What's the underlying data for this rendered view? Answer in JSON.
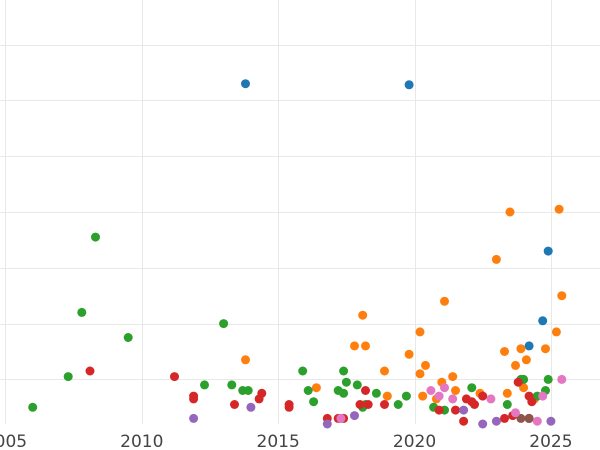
{
  "chart_data": {
    "type": "scatter",
    "title": "",
    "xlabel": "",
    "ylabel": "",
    "grid": true,
    "xlim": [
      2004.8,
      2026.8
    ],
    "ylim": [
      0,
      7.6
    ],
    "xticks": [
      2005,
      2010,
      2015,
      2020,
      2025
    ],
    "xtick_labels": [
      "2005",
      "2010",
      "2015",
      "2020",
      "2025"
    ],
    "yticks": [
      0.8,
      1.8,
      2.8,
      3.8,
      4.8,
      5.8,
      6.8
    ],
    "series": [
      {
        "color": "#1f77b4",
        "points": [
          [
            2013.8,
            6.1
          ],
          [
            2019.8,
            6.08
          ],
          [
            2024.9,
            3.1
          ],
          [
            2024.7,
            1.85
          ],
          [
            2024.2,
            1.4
          ]
        ]
      },
      {
        "color": "#ff7f0e",
        "points": [
          [
            2013.8,
            1.15
          ],
          [
            2016.4,
            0.65
          ],
          [
            2017.8,
            1.4
          ],
          [
            2018.2,
            1.4
          ],
          [
            2018.1,
            1.95
          ],
          [
            2018.9,
            0.95
          ],
          [
            2019.0,
            0.5
          ],
          [
            2019.8,
            1.25
          ],
          [
            2020.2,
            1.65
          ],
          [
            2020.4,
            1.05
          ],
          [
            2020.2,
            0.9
          ],
          [
            2020.3,
            0.5
          ],
          [
            2020.8,
            0.45
          ],
          [
            2021.1,
            2.2
          ],
          [
            2021.0,
            0.75
          ],
          [
            2021.4,
            0.85
          ],
          [
            2021.5,
            0.6
          ],
          [
            2022.4,
            0.55
          ],
          [
            2023.0,
            2.95
          ],
          [
            2023.3,
            1.3
          ],
          [
            2023.5,
            3.8
          ],
          [
            2023.4,
            0.55
          ],
          [
            2023.7,
            1.05
          ],
          [
            2023.9,
            1.35
          ],
          [
            2024.0,
            0.65
          ],
          [
            2024.1,
            1.15
          ],
          [
            2024.4,
            0.45
          ],
          [
            2024.8,
            1.35
          ],
          [
            2025.2,
            1.65
          ],
          [
            2025.3,
            3.85
          ],
          [
            2025.4,
            2.3
          ]
        ]
      },
      {
        "color": "#2ca02c",
        "points": [
          [
            2006.0,
            0.3
          ],
          [
            2007.3,
            0.85
          ],
          [
            2007.8,
            2.0
          ],
          [
            2008.3,
            3.35
          ],
          [
            2009.5,
            1.55
          ],
          [
            2012.3,
            0.7
          ],
          [
            2013.0,
            1.8
          ],
          [
            2013.3,
            0.7
          ],
          [
            2013.7,
            0.6
          ],
          [
            2013.9,
            0.6
          ],
          [
            2015.9,
            0.95
          ],
          [
            2016.1,
            0.6
          ],
          [
            2016.3,
            0.4
          ],
          [
            2017.2,
            0.6
          ],
          [
            2017.4,
            0.55
          ],
          [
            2017.4,
            0.95
          ],
          [
            2017.5,
            0.75
          ],
          [
            2017.9,
            0.7
          ],
          [
            2018.1,
            0.3
          ],
          [
            2018.2,
            0.35
          ],
          [
            2018.6,
            0.55
          ],
          [
            2019.4,
            0.35
          ],
          [
            2019.7,
            0.5
          ],
          [
            2020.7,
            0.3
          ],
          [
            2021.1,
            0.25
          ],
          [
            2022.1,
            0.65
          ],
          [
            2023.4,
            0.35
          ],
          [
            2023.9,
            0.8
          ],
          [
            2024.0,
            0.8
          ],
          [
            2024.5,
            0.5
          ],
          [
            2024.8,
            0.6
          ],
          [
            2024.9,
            0.8
          ]
        ]
      },
      {
        "color": "#d62728",
        "points": [
          [
            2008.1,
            0.95
          ],
          [
            2011.2,
            0.85
          ],
          [
            2011.9,
            0.45
          ],
          [
            2011.9,
            0.5
          ],
          [
            2013.4,
            0.35
          ],
          [
            2014.3,
            0.45
          ],
          [
            2014.4,
            0.55
          ],
          [
            2015.4,
            0.3
          ],
          [
            2015.4,
            0.35
          ],
          [
            2016.8,
            0.1
          ],
          [
            2017.2,
            0.1
          ],
          [
            2017.4,
            0.1
          ],
          [
            2018.0,
            0.35
          ],
          [
            2018.2,
            0.6
          ],
          [
            2018.3,
            0.35
          ],
          [
            2018.9,
            0.35
          ],
          [
            2020.9,
            0.25
          ],
          [
            2021.5,
            0.25
          ],
          [
            2021.8,
            0.05
          ],
          [
            2021.9,
            0.45
          ],
          [
            2022.1,
            0.4
          ],
          [
            2022.2,
            0.35
          ],
          [
            2022.5,
            0.5
          ],
          [
            2023.3,
            0.1
          ],
          [
            2023.6,
            0.15
          ],
          [
            2023.8,
            0.75
          ],
          [
            2024.2,
            0.5
          ],
          [
            2024.2,
            0.1
          ],
          [
            2024.3,
            0.4
          ]
        ]
      },
      {
        "color": "#9467bd",
        "points": [
          [
            2011.9,
            0.1
          ],
          [
            2014.0,
            0.3
          ],
          [
            2016.8,
            0.0
          ],
          [
            2017.3,
            0.1
          ],
          [
            2017.8,
            0.15
          ],
          [
            2021.8,
            0.25
          ],
          [
            2022.5,
            0.0
          ],
          [
            2023.0,
            0.05
          ],
          [
            2024.2,
            0.1
          ],
          [
            2025.0,
            0.05
          ]
        ]
      },
      {
        "color": "#8c564b",
        "points": [
          [
            2023.9,
            0.1
          ],
          [
            2024.2,
            0.1
          ]
        ]
      },
      {
        "color": "#e377c2",
        "points": [
          [
            2017.3,
            0.1
          ],
          [
            2020.6,
            0.6
          ],
          [
            2020.9,
            0.5
          ],
          [
            2021.1,
            0.65
          ],
          [
            2021.4,
            0.45
          ],
          [
            2022.8,
            0.45
          ],
          [
            2023.7,
            0.2
          ],
          [
            2024.5,
            0.05
          ],
          [
            2024.7,
            0.5
          ],
          [
            2025.4,
            0.8
          ]
        ]
      }
    ]
  }
}
